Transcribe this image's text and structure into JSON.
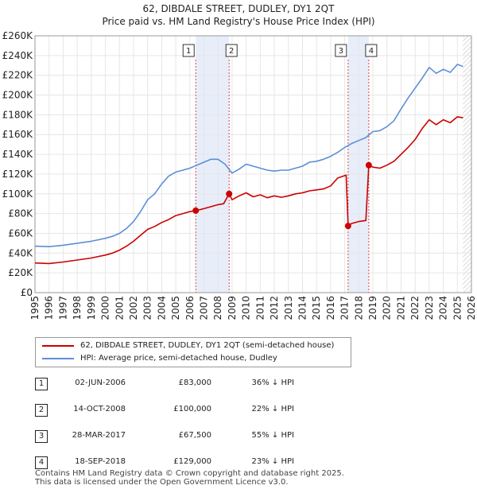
{
  "chart_data": {
    "type": "line",
    "title": "62, DIBDALE STREET, DUDLEY, DY1 2QT",
    "subtitle": "Price paid vs. HM Land Registry's House Price Index (HPI)",
    "xlim": [
      1995,
      2026
    ],
    "ylim": [
      0,
      260000
    ],
    "x_ticks": [
      "1995",
      "1996",
      "1997",
      "1998",
      "1999",
      "2000",
      "2001",
      "2002",
      "2003",
      "2004",
      "2005",
      "2006",
      "2007",
      "2008",
      "2009",
      "2010",
      "2011",
      "2012",
      "2013",
      "2014",
      "2015",
      "2016",
      "2017",
      "2018",
      "2019",
      "2020",
      "2021",
      "2022",
      "2023",
      "2024",
      "2025",
      "2026"
    ],
    "y_ticks": [
      {
        "value": 0,
        "label": "£0"
      },
      {
        "value": 20000,
        "label": "£20K"
      },
      {
        "value": 40000,
        "label": "£40K"
      },
      {
        "value": 60000,
        "label": "£60K"
      },
      {
        "value": 80000,
        "label": "£80K"
      },
      {
        "value": 100000,
        "label": "£100K"
      },
      {
        "value": 120000,
        "label": "£120K"
      },
      {
        "value": 140000,
        "label": "£140K"
      },
      {
        "value": 160000,
        "label": "£160K"
      },
      {
        "value": 180000,
        "label": "£180K"
      },
      {
        "value": 200000,
        "label": "£200K"
      },
      {
        "value": 220000,
        "label": "£220K"
      },
      {
        "value": 240000,
        "label": "£240K"
      },
      {
        "value": 260000,
        "label": "£260K"
      }
    ],
    "grid": true,
    "series": [
      {
        "name": "62, DIBDALE STREET, DUDLEY, DY1 2QT (semi-detached house)",
        "color": "#cc0000",
        "x": [
          1995,
          1996,
          1997,
          1998,
          1999,
          2000,
          2000.5,
          2001,
          2001.5,
          2002,
          2002.5,
          2003,
          2003.5,
          2004,
          2004.5,
          2005,
          2005.5,
          2006,
          2006.42,
          2007,
          2007.5,
          2008,
          2008.4,
          2008.79,
          2009,
          2009.5,
          2010,
          2010.5,
          2011,
          2011.5,
          2012,
          2012.5,
          2013,
          2013.5,
          2014,
          2014.5,
          2015,
          2015.5,
          2016,
          2016.5,
          2017.1,
          2017.24,
          2017.5,
          2018,
          2018.5,
          2018.71,
          2019,
          2019.5,
          2020,
          2020.5,
          2021,
          2021.5,
          2022,
          2022.5,
          2023,
          2023.5,
          2024,
          2024.5,
          2025,
          2025.4
        ],
        "y": [
          30000,
          29500,
          31000,
          33000,
          35000,
          38000,
          40000,
          43000,
          47000,
          52000,
          58000,
          64000,
          67000,
          71000,
          74000,
          78000,
          80000,
          82000,
          83000,
          85000,
          87000,
          89000,
          90000,
          100000,
          94000,
          98000,
          101000,
          97000,
          99000,
          96000,
          98000,
          96500,
          98000,
          100000,
          101000,
          103000,
          104000,
          105000,
          108000,
          116000,
          119000,
          67500,
          70000,
          72000,
          73000,
          129000,
          127000,
          126000,
          129000,
          133000,
          140000,
          147000,
          155000,
          166000,
          175000,
          170000,
          175000,
          172000,
          178000,
          177000
        ]
      },
      {
        "name": "HPI: Average price, semi-detached house, Dudley",
        "color": "#5b8fd6",
        "x": [
          1995,
          1996,
          1997,
          1998,
          1999,
          2000,
          2000.5,
          2001,
          2001.5,
          2002,
          2002.5,
          2003,
          2003.5,
          2004,
          2004.5,
          2005,
          2005.5,
          2006,
          2006.5,
          2007,
          2007.5,
          2008,
          2008.5,
          2009,
          2009.5,
          2010,
          2010.5,
          2011,
          2011.5,
          2012,
          2012.5,
          2013,
          2013.5,
          2014,
          2014.5,
          2015,
          2015.5,
          2016,
          2016.5,
          2017,
          2017.5,
          2018,
          2018.5,
          2019,
          2019.5,
          2020,
          2020.5,
          2021,
          2021.5,
          2022,
          2022.5,
          2023,
          2023.5,
          2024,
          2024.5,
          2025,
          2025.4
        ],
        "y": [
          47000,
          46500,
          48000,
          50000,
          52000,
          55000,
          57000,
          60000,
          65000,
          72000,
          82000,
          94000,
          100000,
          110000,
          118000,
          122000,
          124000,
          126000,
          129000,
          132000,
          135000,
          135000,
          130000,
          121000,
          125000,
          130000,
          128000,
          126000,
          124000,
          123000,
          124000,
          124000,
          126000,
          128000,
          132000,
          133000,
          135000,
          138000,
          142000,
          147000,
          151000,
          154000,
          157000,
          163000,
          164000,
          168000,
          174000,
          186000,
          197000,
          207000,
          217000,
          228000,
          222000,
          226000,
          223000,
          231000,
          229000
        ]
      }
    ],
    "annotations": [
      {
        "label": "1",
        "x": 2006.42
      },
      {
        "label": "2",
        "x": 2008.79
      },
      {
        "label": "3",
        "x": 2017.24
      },
      {
        "label": "4",
        "x": 2018.71
      }
    ],
    "shaded_ranges": [
      [
        2006.42,
        2008.79
      ],
      [
        2017.24,
        2018.71
      ]
    ],
    "forecast_from": 2025.4,
    "sale_points": [
      {
        "x": 2006.42,
        "y": 83000
      },
      {
        "x": 2008.79,
        "y": 100000
      },
      {
        "x": 2017.24,
        "y": 67500
      },
      {
        "x": 2018.71,
        "y": 129000
      }
    ]
  },
  "legend": {
    "property_label": "62, DIBDALE STREET, DUDLEY, DY1 2QT (semi-detached house)",
    "hpi_label": "HPI: Average price, semi-detached house, Dudley",
    "property_color": "#cc0000",
    "hpi_color": "#5b8fd6"
  },
  "sales": [
    {
      "num": "1",
      "date": "02-JUN-2006",
      "price": "£83,000",
      "hpi": "36% ↓ HPI"
    },
    {
      "num": "2",
      "date": "14-OCT-2008",
      "price": "£100,000",
      "hpi": "22% ↓ HPI"
    },
    {
      "num": "3",
      "date": "28-MAR-2017",
      "price": "£67,500",
      "hpi": "55% ↓ HPI"
    },
    {
      "num": "4",
      "date": "18-SEP-2018",
      "price": "£129,000",
      "hpi": "23% ↓ HPI"
    }
  ],
  "footer": {
    "line1": "Contains HM Land Registry data © Crown copyright and database right 2025.",
    "line2": "This data is licensed under the Open Government Licence v3.0."
  }
}
